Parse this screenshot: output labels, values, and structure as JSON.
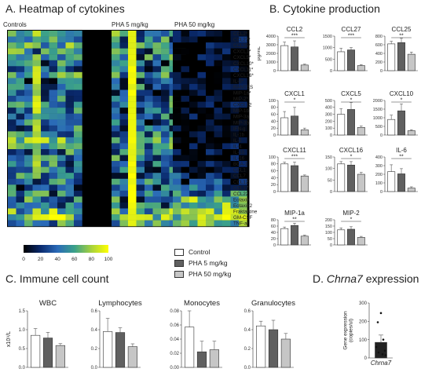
{
  "panels": {
    "a": {
      "letter": "A.",
      "title": "Heatmap of cytokines"
    },
    "b": {
      "letter": "B.",
      "title": "Cytokine production"
    },
    "c": {
      "letter": "C.",
      "title": "Immune cell count"
    },
    "d": {
      "letter": "D.",
      "title_italic": "Chrna7",
      "title_rest": " expression"
    }
  },
  "legend": {
    "items": [
      {
        "label": "Control",
        "color": "#ffffff"
      },
      {
        "label": "PHA 5 mg/kg",
        "color": "#606060"
      },
      {
        "label": "PHA 50 mg/kg",
        "color": "#c6c6c6"
      }
    ]
  },
  "heatmap": {
    "group_labels": [
      "Controls",
      "PHA 5 mg/kg",
      "PHA 50 mg/kg"
    ],
    "rows": [
      "CCL2*",
      "CCL27*",
      "CCL25*",
      "CXCL1*",
      "CXCL5*",
      "CXCL10*",
      "CXCL11*",
      "CXCL16*",
      "IL-6*",
      "RANTES",
      "MIP-1a*",
      "MIP-2*",
      "CXCL12",
      "MIP-1b",
      "MIP-3a",
      "MIP-3b",
      "IFN-g",
      "IL-1b",
      "IL-2",
      "IL-4",
      "IL-10",
      "IL-16",
      "BCA-1",
      "CCL1",
      "CCL7",
      "CCL12",
      "CCL17",
      "CCL22",
      "Eotaxin",
      "Eotaxin2",
      "Fraktalkine",
      "GM-CSF",
      "TNF-a"
    ],
    "colorbar_ticks": [
      "0",
      "20",
      "40",
      "60",
      "80",
      "100"
    ],
    "colorbar_range": [
      0,
      100
    ],
    "colormap_stops": [
      "#000000",
      "#0a2a6e",
      "#2a6ab8",
      "#3aa08a",
      "#a7d23c",
      "#ffff00"
    ]
  },
  "chart_data": [
    {
      "type": "heatmap",
      "title": "Heatmap of cytokines",
      "x_groups": [
        "Controls",
        "PHA 5 mg/kg",
        "PHA 50 mg/kg"
      ],
      "columns_per_group": [
        9,
        9,
        9
      ],
      "rows": [
        "CCL2*",
        "CCL27*",
        "CCL25*",
        "CXCL1*",
        "CXCL5*",
        "CXCL10*",
        "CXCL11*",
        "CXCL16*",
        "IL-6*",
        "RANTES",
        "MIP-1a*",
        "MIP-2*",
        "CXCL12",
        "MIP-1b",
        "MIP-3a",
        "MIP-3b",
        "IFN-g",
        "IL-1b",
        "IL-2",
        "IL-4",
        "IL-10",
        "IL-16",
        "BCA-1",
        "CCL1",
        "CCL7",
        "CCL12",
        "CCL17",
        "CCL22",
        "Eotaxin",
        "Eotaxin2",
        "Fraktalkine",
        "GM-CSF",
        "TNF-a"
      ],
      "value_range": [
        0,
        100
      ]
    },
    {
      "type": "bar",
      "name": "CCL2",
      "categories": [
        "Control",
        "PHA 5 mg/kg",
        "PHA 50 mg/kg"
      ],
      "values": [
        2900,
        2750,
        650
      ],
      "errors": [
        400,
        700,
        100
      ],
      "ylim": [
        0,
        4000
      ],
      "yticks": [
        "0",
        "1000",
        "2000",
        "3000",
        "4000"
      ],
      "ylabel": "pg/mL",
      "sig": "***"
    },
    {
      "type": "bar",
      "name": "CCL27",
      "categories": [
        "Control",
        "PHA 5 mg/kg",
        "PHA 50 mg/kg"
      ],
      "values": [
        820,
        900,
        220
      ],
      "errors": [
        150,
        100,
        40
      ],
      "ylim": [
        0,
        1500
      ],
      "yticks": [
        "0",
        "500",
        "1000",
        "1500"
      ],
      "sig": "***"
    },
    {
      "type": "bar",
      "name": "CCL25",
      "categories": [
        "Control",
        "PHA 5 mg/kg",
        "PHA 50 mg/kg"
      ],
      "values": [
        620,
        650,
        380
      ],
      "errors": [
        60,
        100,
        50
      ],
      "ylim": [
        0,
        800
      ],
      "yticks": [
        "0",
        "200",
        "400",
        "600",
        "800"
      ],
      "sig": "**"
    },
    {
      "type": "bar",
      "name": "CXCL1",
      "categories": [
        "Control",
        "PHA 5 mg/kg",
        "PHA 50 mg/kg"
      ],
      "values": [
        50,
        55,
        15
      ],
      "errors": [
        18,
        25,
        5
      ],
      "ylim": [
        0,
        100
      ],
      "yticks": [
        "0",
        "20",
        "40",
        "60",
        "80",
        "100"
      ],
      "sig": "*"
    },
    {
      "type": "bar",
      "name": "CXCL5",
      "categories": [
        "Control",
        "PHA 5 mg/kg",
        "PHA 50 mg/kg"
      ],
      "values": [
        300,
        370,
        110
      ],
      "errors": [
        80,
        100,
        20
      ],
      "ylim": [
        0,
        500
      ],
      "yticks": [
        "0",
        "100",
        "200",
        "300",
        "400",
        "500"
      ],
      "sig": "*"
    },
    {
      "type": "bar",
      "name": "CXCL10",
      "categories": [
        "Control",
        "PHA 5 mg/kg",
        "PHA 50 mg/kg"
      ],
      "values": [
        900,
        1400,
        250
      ],
      "errors": [
        250,
        400,
        60
      ],
      "ylim": [
        0,
        2000
      ],
      "yticks": [
        "0",
        "500",
        "1000",
        "1500",
        "2000"
      ],
      "sig": "*"
    },
    {
      "type": "bar",
      "name": "CXCL11",
      "categories": [
        "Control",
        "PHA 5 mg/kg",
        "PHA 50 mg/kg"
      ],
      "values": [
        80,
        75,
        45
      ],
      "errors": [
        5,
        10,
        3
      ],
      "ylim": [
        0,
        100
      ],
      "yticks": [
        "0",
        "20",
        "40",
        "60",
        "80",
        "100"
      ],
      "sig": "***"
    },
    {
      "type": "bar",
      "name": "CXCL16",
      "categories": [
        "Control",
        "PHA 5 mg/kg",
        "PHA 50 mg/kg"
      ],
      "values": [
        120,
        115,
        75
      ],
      "errors": [
        10,
        15,
        8
      ],
      "ylim": [
        0,
        150
      ],
      "yticks": [
        "0",
        "50",
        "100",
        "150"
      ],
      "sig": "*"
    },
    {
      "type": "bar",
      "name": "IL-6",
      "categories": [
        "Control",
        "PHA 5 mg/kg",
        "PHA 50 mg/kg"
      ],
      "values": [
        230,
        205,
        40
      ],
      "errors": [
        80,
        60,
        15
      ],
      "ylim": [
        0,
        400
      ],
      "yticks": [
        "0",
        "100",
        "200",
        "300",
        "400"
      ],
      "sig": "**"
    },
    {
      "type": "bar",
      "name": "MIP-1a",
      "categories": [
        "Control",
        "PHA 5 mg/kg",
        "PHA 50 mg/kg"
      ],
      "values": [
        52,
        62,
        28
      ],
      "errors": [
        5,
        7,
        3
      ],
      "ylim": [
        0,
        80
      ],
      "yticks": [
        "0",
        "20",
        "40",
        "60",
        "80"
      ],
      "sig": "**"
    },
    {
      "type": "bar",
      "name": "MIP-2",
      "categories": [
        "Control",
        "PHA 5 mg/kg",
        "PHA 50 mg/kg"
      ],
      "values": [
        120,
        125,
        60
      ],
      "errors": [
        15,
        20,
        8
      ],
      "ylim": [
        0,
        200
      ],
      "yticks": [
        "0",
        "50",
        "100",
        "150",
        "200"
      ],
      "sig": "*"
    },
    {
      "type": "bar",
      "name": "WBC",
      "categories": [
        "Control",
        "PHA 5 mg/kg",
        "PHA 50 mg/kg"
      ],
      "values": [
        0.85,
        0.78,
        0.58
      ],
      "errors": [
        0.18,
        0.15,
        0.05
      ],
      "ylim": [
        0,
        1.5
      ],
      "yticks": [
        "0.0",
        "0.5",
        "1.0",
        "1.5"
      ],
      "ylabel": "x10⁹/L"
    },
    {
      "type": "bar",
      "name": "Lymphocytes",
      "categories": [
        "Control",
        "PHA 5 mg/kg",
        "PHA 50 mg/kg"
      ],
      "values": [
        0.38,
        0.37,
        0.22
      ],
      "errors": [
        0.14,
        0.05,
        0.03
      ],
      "ylim": [
        0,
        0.6
      ],
      "yticks": [
        "0.0",
        "0.2",
        "0.4",
        "0.6"
      ]
    },
    {
      "type": "bar",
      "name": "Monocytes",
      "categories": [
        "Control",
        "PHA 5 mg/kg",
        "PHA 50 mg/kg"
      ],
      "values": [
        0.057,
        0.022,
        0.025
      ],
      "errors": [
        0.03,
        0.015,
        0.012
      ],
      "ylim": [
        0,
        0.08
      ],
      "yticks": [
        "0.00",
        "0.02",
        "0.04",
        "0.06",
        "0.08"
      ]
    },
    {
      "type": "bar",
      "name": "Granulocytes",
      "categories": [
        "Control",
        "PHA 5 mg/kg",
        "PHA 50 mg/kg"
      ],
      "values": [
        0.44,
        0.4,
        0.3
      ],
      "errors": [
        0.05,
        0.1,
        0.06
      ],
      "ylim": [
        0,
        0.6
      ],
      "yticks": [
        "0.0",
        "0.2",
        "0.4",
        "0.6"
      ]
    },
    {
      "type": "bar",
      "name": "Chrna7",
      "categories": [
        "Chrna7"
      ],
      "values": [
        85
      ],
      "errors": [
        40
      ],
      "points": [
        245,
        195,
        100,
        60,
        40,
        30,
        20,
        15
      ],
      "ylim": [
        0,
        300
      ],
      "yticks": [
        "0",
        "100",
        "200",
        "300"
      ],
      "ylabel": "Gene expression\n(copies/ul)"
    }
  ]
}
